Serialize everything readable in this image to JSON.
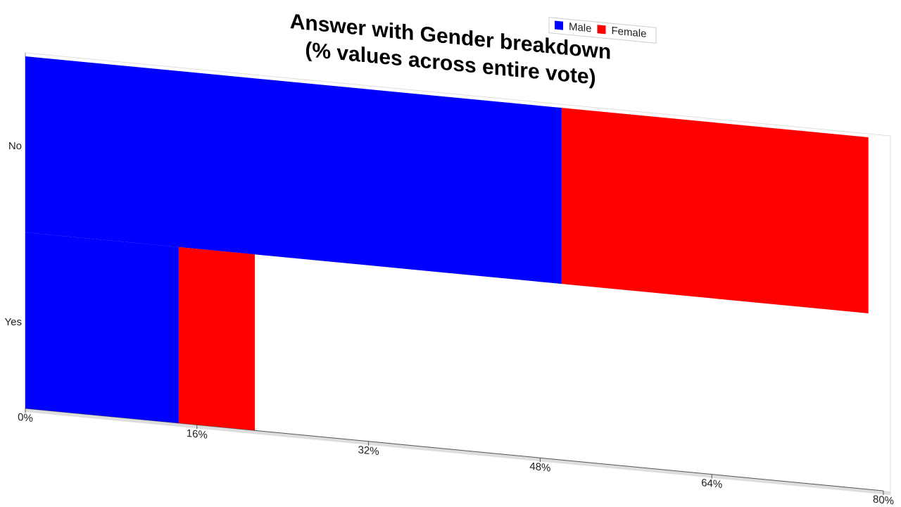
{
  "chart_data": {
    "type": "stacked_barh",
    "title": "Answer with Gender breakdown",
    "subtitle": "(% values across entire vote)",
    "categories": [
      "No",
      "Yes"
    ],
    "series": [
      {
        "name": "Male",
        "color": "#0000ff",
        "values": [
          50,
          14.3
        ]
      },
      {
        "name": "Female",
        "color": "#ff0000",
        "values": [
          28.6,
          7.1
        ]
      }
    ],
    "xlim": [
      0,
      80
    ],
    "xticks": [
      {
        "value": 0,
        "label": "0%"
      },
      {
        "value": 16,
        "label": "16%"
      },
      {
        "value": 32,
        "label": "32%"
      },
      {
        "value": 48,
        "label": "48%"
      },
      {
        "value": 64,
        "label": "64%"
      },
      {
        "value": 80,
        "label": "80%"
      }
    ],
    "legend": "top"
  }
}
